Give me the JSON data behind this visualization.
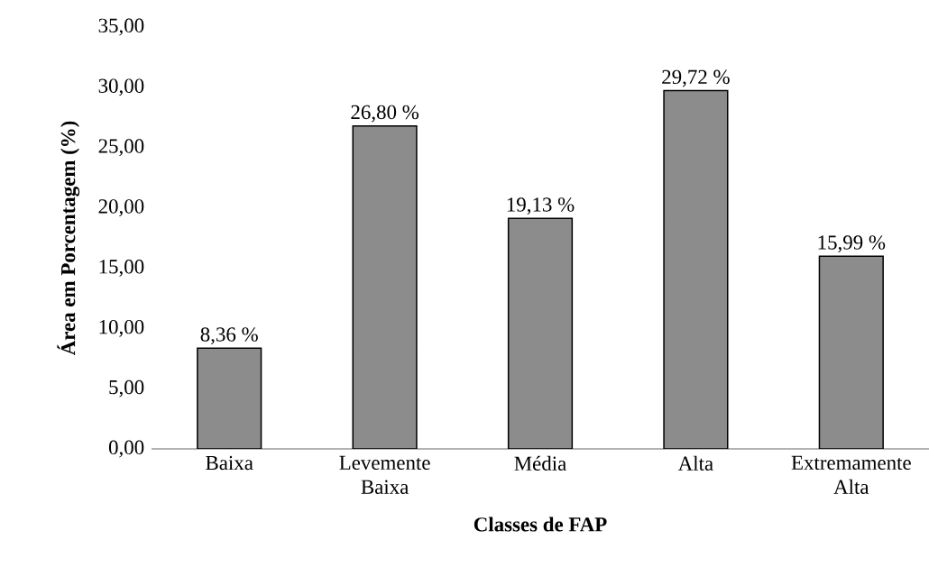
{
  "chart_data": {
    "type": "bar",
    "xlabel": "Classes de FAP",
    "ylabel": "Área em Porcentagem (%)",
    "categories": [
      "Baixa",
      "Levemente Baixa",
      "Média",
      "Alta",
      "Extremamente Alta"
    ],
    "values": [
      8.36,
      26.8,
      19.13,
      29.72,
      15.99
    ],
    "value_labels": [
      "8,36 %",
      "26,80 %",
      "19,13 %",
      "29,72 %",
      "15,99 %"
    ],
    "color": "#8c8c8c",
    "ylim": [
      0,
      35
    ],
    "yticks": [
      {
        "value": 0,
        "label": "0,00"
      },
      {
        "value": 5,
        "label": "5,00"
      },
      {
        "value": 10,
        "label": "10,00"
      },
      {
        "value": 15,
        "label": "15,00"
      },
      {
        "value": 20,
        "label": "20,00"
      },
      {
        "value": 25,
        "label": "25,00"
      },
      {
        "value": 30,
        "label": "30,00"
      },
      {
        "value": 35,
        "label": "35,00"
      }
    ],
    "grid": false
  }
}
